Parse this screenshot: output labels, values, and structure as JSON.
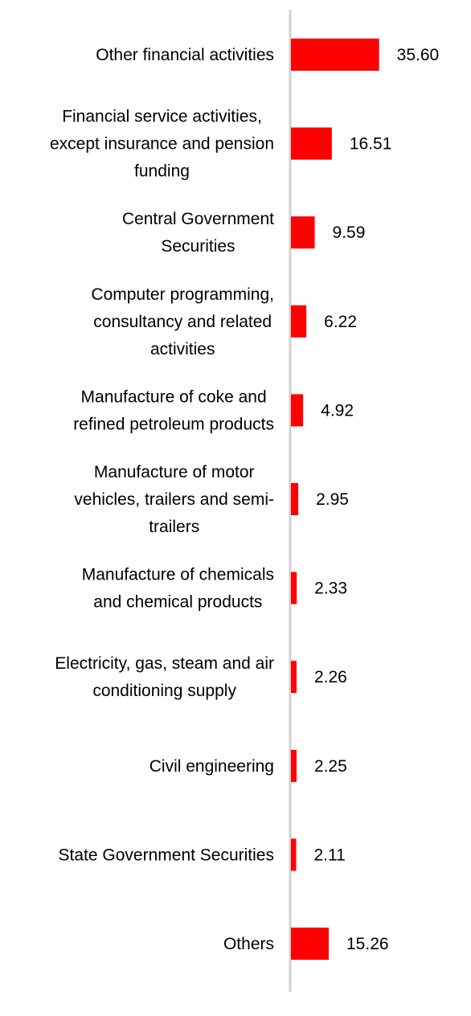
{
  "chart_data": {
    "type": "bar",
    "orientation": "horizontal",
    "categories": [
      "Other financial activities",
      "Financial service activities, except insurance and pension funding",
      "Central Government Securities",
      "Computer programming, consultancy and related activities",
      "Manufacture of coke and refined petroleum products",
      "Manufacture of motor vehicles, trailers and semi-trailers",
      "Manufacture of chemicals and chemical products",
      "Electricity, gas, steam and air conditioning supply",
      "Civil engineering",
      "State Government Securities",
      "Others"
    ],
    "category_lines": [
      [
        "Other financial activities"
      ],
      [
        "Financial service activities,",
        "except insurance and pension",
        "funding"
      ],
      [
        "Central Government",
        "Securities"
      ],
      [
        "Computer programming,",
        "consultancy and related",
        "activities"
      ],
      [
        "Manufacture of coke and",
        "refined petroleum products"
      ],
      [
        "Manufacture of motor",
        "vehicles, trailers and semi-",
        "trailers"
      ],
      [
        "Manufacture of chemicals",
        "and chemical products"
      ],
      [
        "Electricity, gas, steam and air",
        "conditioning supply"
      ],
      [
        "Civil engineering"
      ],
      [
        "State Government Securities"
      ],
      [
        "Others"
      ]
    ],
    "values": [
      35.6,
      16.51,
      9.59,
      6.22,
      4.92,
      2.95,
      2.33,
      2.26,
      2.25,
      2.11,
      15.26
    ],
    "value_labels": [
      "35.60",
      "16.51",
      "9.59",
      "6.22",
      "4.92",
      "2.95",
      "2.33",
      "2.26",
      "2.25",
      "2.11",
      "15.26"
    ],
    "title": "",
    "xlabel": "",
    "ylabel": "",
    "xlim": [
      0,
      40
    ],
    "grid": false,
    "legend": "none",
    "bar_color": "#ff0000",
    "axis_color": "#d0d0d0"
  }
}
